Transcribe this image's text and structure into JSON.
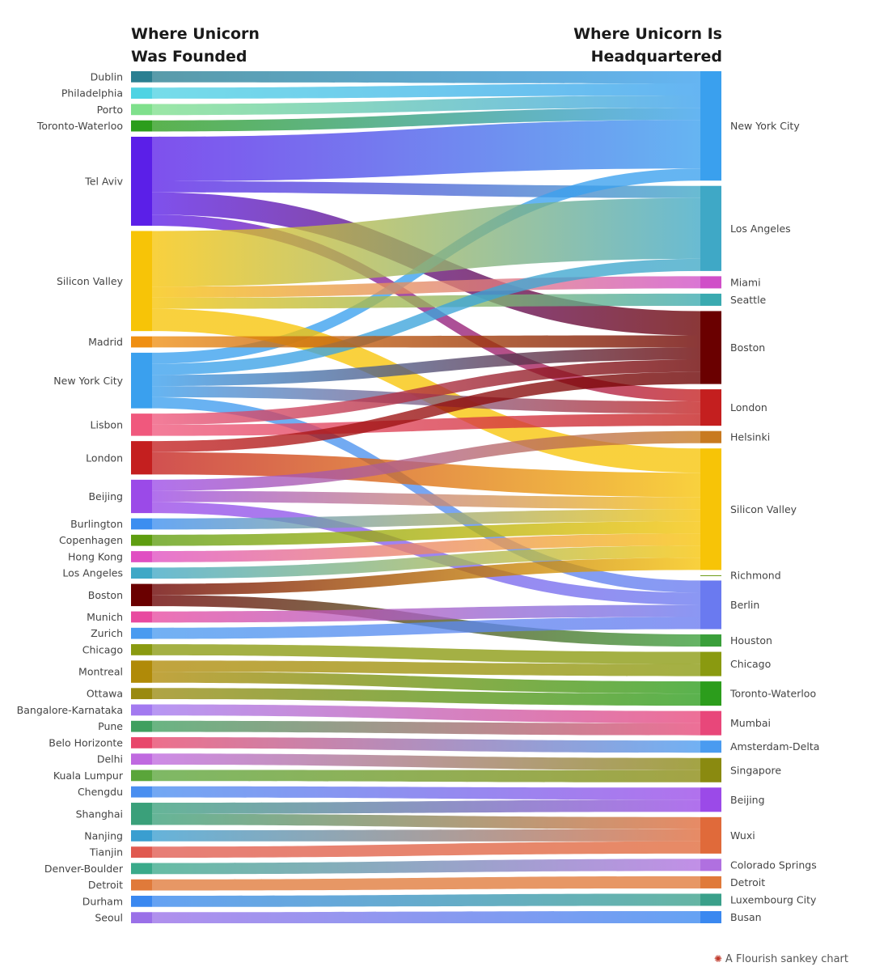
{
  "chart_data": {
    "type": "sankey",
    "left_header": [
      "Where Unicorn",
      "Was Founded"
    ],
    "right_header": [
      "Where Unicorn Is",
      "Headquartered"
    ],
    "credit": "A Flourish sankey chart",
    "sources": [
      {
        "name": "Dublin",
        "color": "#2a7f91"
      },
      {
        "name": "Philadelphia",
        "color": "#4fd3e3"
      },
      {
        "name": "Porto",
        "color": "#7fe08c"
      },
      {
        "name": "Toronto-Waterloo",
        "color": "#2c9d1c"
      },
      {
        "name": "Tel Aviv",
        "color": "#5b1fe8"
      },
      {
        "name": "Silicon Valley",
        "color": "#f7c407"
      },
      {
        "name": "Madrid",
        "color": "#ef8f12"
      },
      {
        "name": "New York City",
        "color": "#3aa0ee"
      },
      {
        "name": "Lisbon",
        "color": "#f0587d"
      },
      {
        "name": "London",
        "color": "#c41f1f"
      },
      {
        "name": "Beijing",
        "color": "#9b4ae8"
      },
      {
        "name": "Burlington",
        "color": "#3c8ef0"
      },
      {
        "name": "Copenhagen",
        "color": "#5e9d10"
      },
      {
        "name": "Hong Kong",
        "color": "#e04fc2"
      },
      {
        "name": "Los Angeles",
        "color": "#3fa8c6"
      },
      {
        "name": "Boston",
        "color": "#6a0000"
      },
      {
        "name": "Munich",
        "color": "#e84aa0"
      },
      {
        "name": "Zurich",
        "color": "#4a9bf0"
      },
      {
        "name": "Chicago",
        "color": "#8a9a10"
      },
      {
        "name": "Montreal",
        "color": "#b08a08"
      },
      {
        "name": "Ottawa",
        "color": "#9a8a10"
      },
      {
        "name": "Bangalore-Karnataka",
        "color": "#a37af0"
      },
      {
        "name": "Pune",
        "color": "#3f9f5f"
      },
      {
        "name": "Belo Horizonte",
        "color": "#e8476b"
      },
      {
        "name": "Delhi",
        "color": "#c06ae0"
      },
      {
        "name": "Kuala Lumpur",
        "color": "#5aa53a"
      },
      {
        "name": "Chengdu",
        "color": "#4a8ff0"
      },
      {
        "name": "Shanghai",
        "color": "#3aa07a"
      },
      {
        "name": "Nanjing",
        "color": "#3a9ed0"
      },
      {
        "name": "Tianjin",
        "color": "#e05a50"
      },
      {
        "name": "Denver-Boulder",
        "color": "#3aaa8a"
      },
      {
        "name": "Detroit",
        "color": "#e07a3a"
      },
      {
        "name": "Durham",
        "color": "#3a88f0"
      },
      {
        "name": "Seoul",
        "color": "#9a70e8"
      }
    ],
    "targets": [
      {
        "name": "New York City",
        "color": "#3aa0ee"
      },
      {
        "name": "Los Angeles",
        "color": "#3fa8c6"
      },
      {
        "name": "Miami",
        "color": "#d04fc8"
      },
      {
        "name": "Seattle",
        "color": "#3aaab0"
      },
      {
        "name": "Boston",
        "color": "#6a0000"
      },
      {
        "name": "London",
        "color": "#c41f1f"
      },
      {
        "name": "Helsinki",
        "color": "#c87a20"
      },
      {
        "name": "Silicon Valley",
        "color": "#f7c407"
      },
      {
        "name": "Richmond",
        "color": "#6a9a10"
      },
      {
        "name": "Berlin",
        "color": "#6a7af0"
      },
      {
        "name": "Houston",
        "color": "#3a9f3a"
      },
      {
        "name": "Chicago",
        "color": "#8a9a10"
      },
      {
        "name": "Toronto-Waterloo",
        "color": "#2c9d1c"
      },
      {
        "name": "Mumbai",
        "color": "#e8477a"
      },
      {
        "name": "Amsterdam-Delta",
        "color": "#4a9bf0"
      },
      {
        "name": "Singapore",
        "color": "#8a8a10"
      },
      {
        "name": "Beijing",
        "color": "#9b4ae8"
      },
      {
        "name": "Wuxi",
        "color": "#e06a3a"
      },
      {
        "name": "Colorado Springs",
        "color": "#b070e0"
      },
      {
        "name": "Detroit",
        "color": "#e07a3a"
      },
      {
        "name": "Luxembourg City",
        "color": "#3aa08a"
      },
      {
        "name": "Busan",
        "color": "#3a88f0"
      }
    ],
    "links": [
      {
        "source": "Dublin",
        "target": "New York City",
        "value": 1
      },
      {
        "source": "Philadelphia",
        "target": "New York City",
        "value": 1
      },
      {
        "source": "Porto",
        "target": "New York City",
        "value": 1
      },
      {
        "source": "Toronto-Waterloo",
        "target": "New York City",
        "value": 1
      },
      {
        "source": "Tel Aviv",
        "target": "New York City",
        "value": 4
      },
      {
        "source": "Tel Aviv",
        "target": "Los Angeles",
        "value": 1
      },
      {
        "source": "Tel Aviv",
        "target": "Boston",
        "value": 2
      },
      {
        "source": "Tel Aviv",
        "target": "London",
        "value": 1
      },
      {
        "source": "New York City",
        "target": "New York City",
        "value": 1
      },
      {
        "source": "Silicon Valley",
        "target": "Los Angeles",
        "value": 5
      },
      {
        "source": "Silicon Valley",
        "target": "Miami",
        "value": 1
      },
      {
        "source": "Silicon Valley",
        "target": "Seattle",
        "value": 1
      },
      {
        "source": "Silicon Valley",
        "target": "Silicon Valley",
        "value": 2
      },
      {
        "source": "New York City",
        "target": "Los Angeles",
        "value": 1
      },
      {
        "source": "Madrid",
        "target": "Boston",
        "value": 1
      },
      {
        "source": "New York City",
        "target": "Boston",
        "value": 1
      },
      {
        "source": "New York City",
        "target": "London",
        "value": 1
      },
      {
        "source": "New York City",
        "target": "Berlin",
        "value": 1
      },
      {
        "source": "Lisbon",
        "target": "Boston",
        "value": 1
      },
      {
        "source": "Lisbon",
        "target": "London",
        "value": 1
      },
      {
        "source": "London",
        "target": "Boston",
        "value": 1
      },
      {
        "source": "London",
        "target": "Silicon Valley",
        "value": 2
      },
      {
        "source": "Beijing",
        "target": "Helsinki",
        "value": 1
      },
      {
        "source": "Beijing",
        "target": "Silicon Valley",
        "value": 1
      },
      {
        "source": "Beijing",
        "target": "Berlin",
        "value": 1
      },
      {
        "source": "Burlington",
        "target": "Silicon Valley",
        "value": 1
      },
      {
        "source": "Copenhagen",
        "target": "Silicon Valley",
        "value": 1
      },
      {
        "source": "Hong Kong",
        "target": "Silicon Valley",
        "value": 1
      },
      {
        "source": "Los Angeles",
        "target": "Silicon Valley",
        "value": 1
      },
      {
        "source": "Boston",
        "target": "Silicon Valley",
        "value": 1
      },
      {
        "source": "Boston",
        "target": "Houston",
        "value": 1
      },
      {
        "source": "Munich",
        "target": "Berlin",
        "value": 1
      },
      {
        "source": "Zurich",
        "target": "Berlin",
        "value": 1
      },
      {
        "source": "Chicago",
        "target": "Chicago",
        "value": 1
      },
      {
        "source": "Montreal",
        "target": "Chicago",
        "value": 1
      },
      {
        "source": "Montreal",
        "target": "Toronto-Waterloo",
        "value": 1
      },
      {
        "source": "Ottawa",
        "target": "Toronto-Waterloo",
        "value": 1
      },
      {
        "source": "Bangalore-Karnataka",
        "target": "Mumbai",
        "value": 1
      },
      {
        "source": "Pune",
        "target": "Mumbai",
        "value": 1
      },
      {
        "source": "Belo Horizonte",
        "target": "Amsterdam-Delta",
        "value": 1
      },
      {
        "source": "Delhi",
        "target": "Singapore",
        "value": 1
      },
      {
        "source": "Kuala Lumpur",
        "target": "Singapore",
        "value": 1
      },
      {
        "source": "Chengdu",
        "target": "Beijing",
        "value": 1
      },
      {
        "source": "Shanghai",
        "target": "Beijing",
        "value": 1
      },
      {
        "source": "Shanghai",
        "target": "Wuxi",
        "value": 1
      },
      {
        "source": "Nanjing",
        "target": "Wuxi",
        "value": 1
      },
      {
        "source": "Tianjin",
        "target": "Wuxi",
        "value": 1
      },
      {
        "source": "Denver-Boulder",
        "target": "Colorado Springs",
        "value": 1
      },
      {
        "source": "Detroit",
        "target": "Detroit",
        "value": 1
      },
      {
        "source": "Durham",
        "target": "Luxembourg City",
        "value": 1
      },
      {
        "source": "Seoul",
        "target": "Busan",
        "value": 1
      }
    ]
  }
}
